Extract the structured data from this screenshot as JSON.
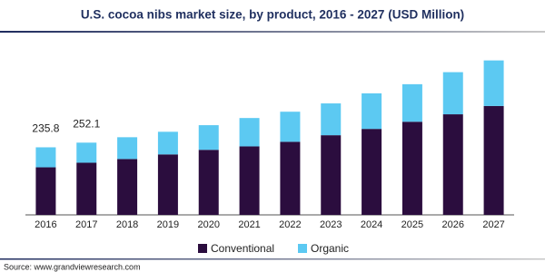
{
  "chart_data": {
    "type": "stacked_bar",
    "title": "U.S. cocoa nibs market size, by product, 2016 - 2027 (USD Million)",
    "categories": [
      "2016",
      "2017",
      "2018",
      "2019",
      "2020",
      "2021",
      "2022",
      "2023",
      "2024",
      "2025",
      "2026",
      "2027"
    ],
    "series": [
      {
        "name": "Conventional",
        "color": "#2b0d3e",
        "values": [
          166,
          182,
          195,
          211,
          227,
          239,
          255,
          278,
          300,
          325,
          351,
          380
        ]
      },
      {
        "name": "Organic",
        "color": "#5cc9f2",
        "values": [
          69.8,
          70.1,
          76,
          79,
          86,
          99,
          105,
          111,
          124,
          131,
          147,
          159
        ]
      }
    ],
    "totals": [
      235.8,
      252.1,
      null,
      null,
      null,
      null,
      null,
      null,
      null,
      null,
      null,
      null
    ],
    "ylim": [
      0,
      560
    ],
    "source": "Source: www.grandviewresearch.com"
  }
}
